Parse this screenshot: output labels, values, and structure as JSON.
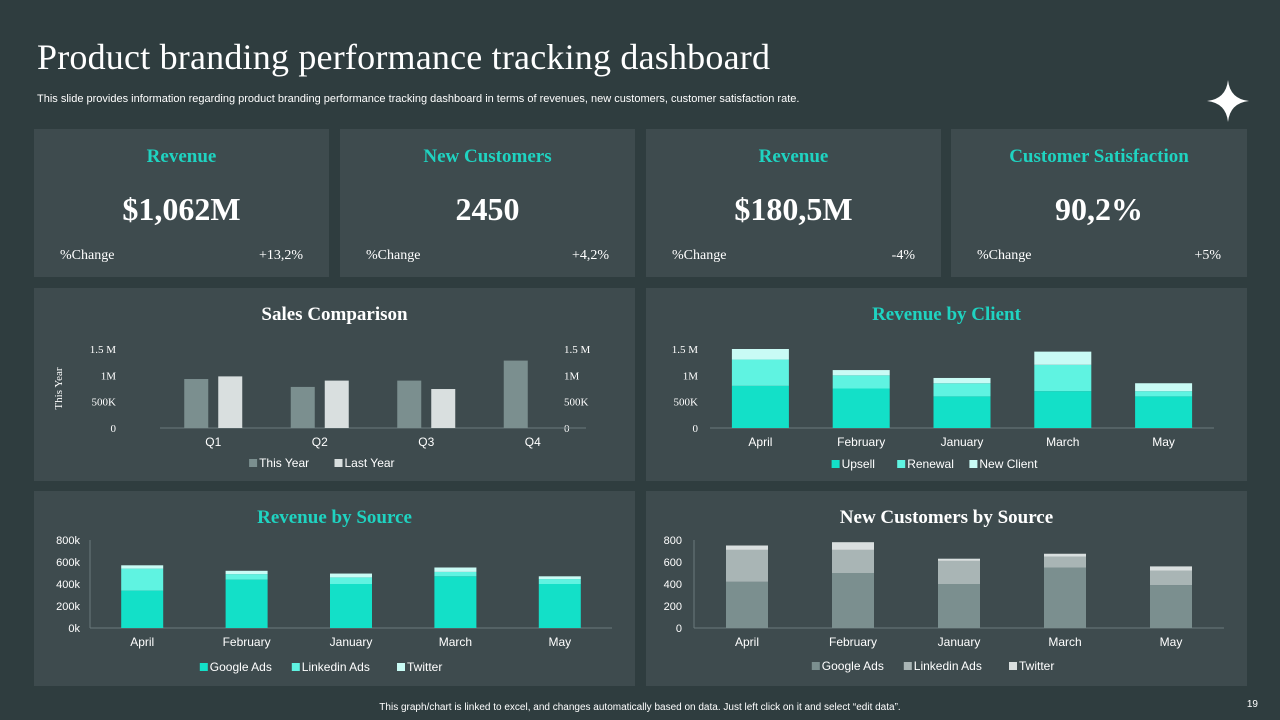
{
  "header": {
    "title": "Product branding performance tracking dashboard",
    "subtitle": "This slide provides information regarding product branding performance tracking dashboard in terms of revenues, new customers, customer satisfaction rate."
  },
  "kpis": [
    {
      "label": "Revenue",
      "value": "$1,062M",
      "change_label": "%Change",
      "change": "+13,2%"
    },
    {
      "label": "New Customers",
      "value": "2450",
      "change_label": "%Change",
      "change": "+4,2%"
    },
    {
      "label": "Revenue",
      "value": "$180,5M",
      "change_label": "%Change",
      "change": "-4%"
    },
    {
      "label": "Customer Satisfaction",
      "value": "90,2%",
      "change_label": "%Change",
      "change": "+5%"
    }
  ],
  "colors": {
    "accent": "#1fd3c1",
    "teal_dark": "#13e0c8",
    "teal_mid": "#5ff3e1",
    "teal_light": "#c9fbf5",
    "gray_dark": "#7b8f8f",
    "gray_mid": "#a9b5b5",
    "gray_light": "#d9dfdf",
    "panel": "#3e4b4e",
    "background": "#2f3d3f"
  },
  "chart_data": [
    {
      "id": "sales-comparison",
      "type": "bar",
      "title": "Sales Comparison",
      "title_color": "#ffffff",
      "ylabel": "This Year",
      "ylim": [
        0,
        1.5
      ],
      "tick_values": [
        0,
        0.5,
        1,
        1.5
      ],
      "tick_labels": [
        "0",
        "500K",
        "1M",
        "1.5 M"
      ],
      "categories": [
        "Q1",
        "Q2",
        "Q3",
        "Q4"
      ],
      "series": [
        {
          "name": "This Year",
          "color": "#7b8f8f",
          "values": [
            0.93,
            0.78,
            0.9,
            1.28
          ]
        },
        {
          "name": "Last Year",
          "color": "#d9dfdf",
          "values": [
            0.98,
            0.9,
            0.74,
            null
          ]
        }
      ]
    },
    {
      "id": "revenue-by-client",
      "type": "bar",
      "stacked": true,
      "title": "Revenue by Client",
      "title_color": "#1fd3c1",
      "ylim": [
        0,
        1.5
      ],
      "tick_values": [
        0,
        0.5,
        1,
        1.5
      ],
      "tick_labels": [
        "0",
        "500K",
        "1M",
        "1.5 M"
      ],
      "categories": [
        "April",
        "February",
        "January",
        "March",
        "May"
      ],
      "series": [
        {
          "name": "Upsell",
          "color": "#13e0c8",
          "values": [
            0.8,
            0.75,
            0.6,
            0.7,
            0.6
          ]
        },
        {
          "name": "Renewal",
          "color": "#5ff3e1",
          "values": [
            0.5,
            0.25,
            0.25,
            0.5,
            0.1
          ]
        },
        {
          "name": "New Client",
          "color": "#c9fbf5",
          "values": [
            0.2,
            0.1,
            0.1,
            0.25,
            0.15
          ]
        }
      ]
    },
    {
      "id": "revenue-by-source",
      "type": "bar",
      "stacked": true,
      "title": "Revenue by Source",
      "title_color": "#1fd3c1",
      "ylim": [
        0,
        800
      ],
      "tick_values": [
        0,
        200,
        400,
        600,
        800
      ],
      "tick_labels": [
        "0k",
        "200k",
        "400k",
        "600k",
        "800k"
      ],
      "categories": [
        "April",
        "February",
        "January",
        "March",
        "May"
      ],
      "series": [
        {
          "name": "Google Ads",
          "color": "#13e0c8",
          "values": [
            340,
            440,
            400,
            470,
            400
          ]
        },
        {
          "name": "Linkedin Ads",
          "color": "#5ff3e1",
          "values": [
            200,
            50,
            60,
            40,
            45
          ]
        },
        {
          "name": "Twitter",
          "color": "#c9fbf5",
          "values": [
            30,
            30,
            35,
            40,
            25
          ]
        }
      ]
    },
    {
      "id": "new-customers-by-source",
      "type": "bar",
      "stacked": true,
      "title": "New Customers by Source",
      "title_color": "#ffffff",
      "ylim": [
        0,
        800
      ],
      "tick_values": [
        0,
        200,
        400,
        600,
        800
      ],
      "tick_labels": [
        "0",
        "200",
        "400",
        "600",
        "800"
      ],
      "categories": [
        "April",
        "February",
        "January",
        "March",
        "May"
      ],
      "series": [
        {
          "name": "Google Ads",
          "color": "#7b8f8f",
          "values": [
            420,
            500,
            400,
            550,
            390
          ]
        },
        {
          "name": "Linkedin Ads",
          "color": "#a9b5b5",
          "values": [
            290,
            210,
            210,
            100,
            130
          ]
        },
        {
          "name": "Twitter",
          "color": "#d9dfdf",
          "values": [
            40,
            70,
            20,
            25,
            40
          ]
        }
      ]
    }
  ],
  "footer": {
    "note": "This graph/chart is linked to excel, and changes automatically based on data. Just left click on it and select “edit data”.",
    "page_number": "19"
  }
}
